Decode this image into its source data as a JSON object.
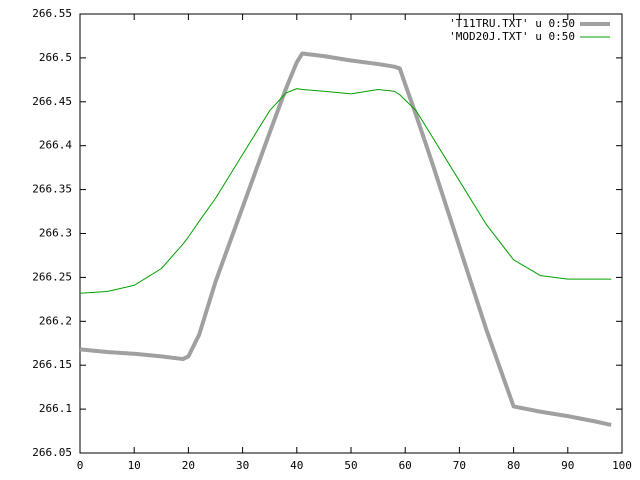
{
  "chart_data": {
    "type": "line",
    "x": [
      0,
      5,
      10,
      15,
      19,
      20,
      22,
      25,
      30,
      35,
      38,
      40,
      41,
      45,
      50,
      55,
      58,
      59,
      60,
      62,
      65,
      70,
      75,
      80,
      85,
      90,
      95,
      98
    ],
    "series": [
      {
        "name": "'T11TRU.TXT' u 0:50",
        "color": "#a0a0a0",
        "width": 4,
        "values": [
          266.168,
          266.165,
          266.163,
          266.16,
          266.157,
          266.16,
          266.185,
          266.245,
          266.33,
          266.415,
          266.465,
          266.495,
          266.505,
          266.502,
          266.497,
          266.493,
          266.49,
          266.488,
          266.47,
          266.435,
          266.38,
          266.285,
          266.19,
          266.103,
          266.097,
          266.092,
          266.086,
          266.082
        ]
      },
      {
        "name": "'MOD20J.TXT' u 0:50",
        "color": "#00a000",
        "width": 1,
        "values": [
          266.232,
          266.234,
          266.241,
          266.26,
          266.288,
          266.296,
          266.314,
          266.34,
          266.39,
          266.44,
          266.46,
          266.465,
          266.464,
          266.462,
          266.459,
          266.464,
          266.462,
          266.458,
          266.452,
          266.44,
          266.41,
          266.36,
          266.31,
          266.27,
          266.252,
          266.248,
          266.248,
          266.248
        ]
      }
    ],
    "xlim": [
      0,
      100
    ],
    "xticks": [
      0,
      10,
      20,
      30,
      40,
      50,
      60,
      70,
      80,
      90,
      100
    ],
    "ylim": [
      266.05,
      266.55
    ],
    "yticks": [
      266.05,
      266.1,
      266.15,
      266.2,
      266.25,
      266.3,
      266.35,
      266.4,
      266.45,
      266.5,
      266.55
    ],
    "grid": false,
    "legend": "top-right"
  }
}
